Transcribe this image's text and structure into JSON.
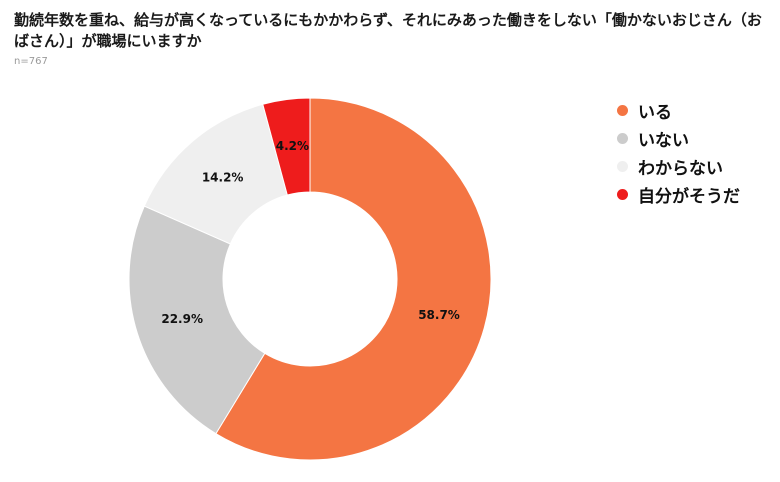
{
  "title": "勤続年数を重ね、給与が高くなっているにもかかわらず、それにみあった働きをしない「働かないおじさん（おばさん）」が職場にいますか",
  "sample_size": "n=767",
  "chart_data": {
    "type": "pie",
    "variant": "donut",
    "title": "勤続年数を重ね、給与が高くなっているにもかかわらず、それにみあった働きをしない「働かないおじさん（おばさん）」が職場にいますか",
    "subtitle": "n=767",
    "unit": "%",
    "legend_position": "right",
    "slices": [
      {
        "label": "いる",
        "value": 58.7,
        "display": "58.7%",
        "color": "#f47543"
      },
      {
        "label": "いない",
        "value": 22.9,
        "display": "22.9%",
        "color": "#cccccc"
      },
      {
        "label": "わからない",
        "value": 14.2,
        "display": "14.2%",
        "color": "#efefef"
      },
      {
        "label": "自分がそうだ",
        "value": 4.2,
        "display": "4.2%",
        "color": "#ee1c1c"
      }
    ]
  }
}
